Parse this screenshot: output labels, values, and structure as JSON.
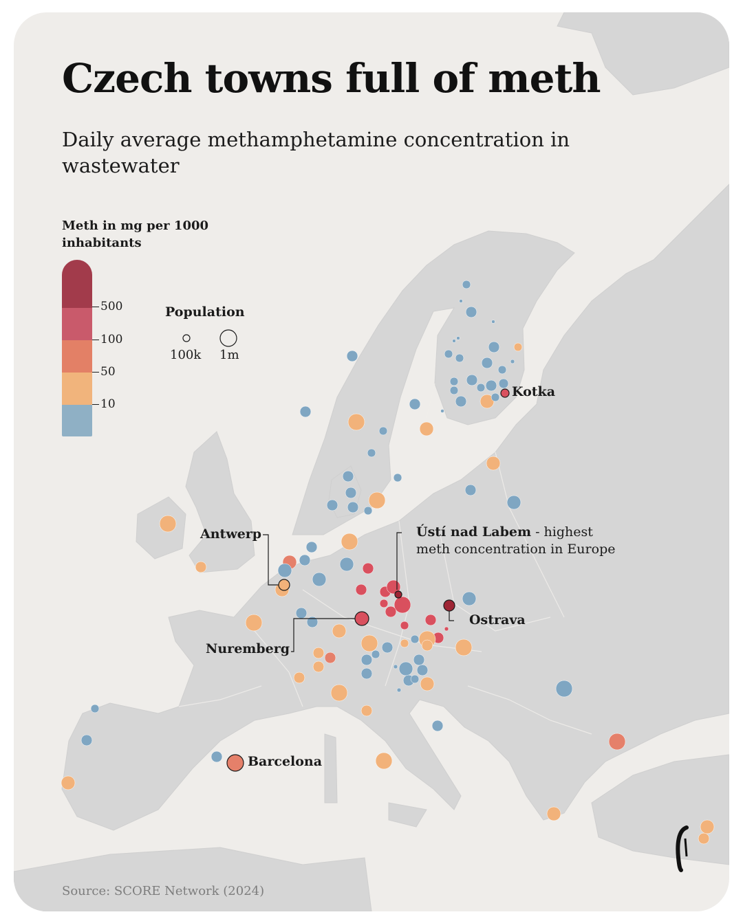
{
  "title": "Czech towns full of meth",
  "subtitle": "Daily average methamphetamine concentration in wastewater",
  "legend": {
    "title": "Meth in mg per 1000 inhabitants",
    "ticks": [
      "500",
      "100",
      "50",
      "10"
    ],
    "colors": [
      "#a23b4b",
      "#c95a6b",
      "#e38066",
      "#f1b47c",
      "#8fb0c5"
    ]
  },
  "population_legend": {
    "title": "Population",
    "small_label": "100k",
    "large_label": "1m"
  },
  "labels": {
    "kotka": "Kotka",
    "antwerp": "Antwerp",
    "usti": "Ústí nad Labem",
    "usti_note_rest": " - highest",
    "usti_note_line2": "meth concentration in Europe",
    "ostrava": "Ostrava",
    "nuremberg": "Nuremberg",
    "barcelona": "Barcelona"
  },
  "source": "Source: SCORE Network (2024)",
  "colors": {
    "land": "#d6d6d6",
    "sea": "#efedea",
    "blue": "#7fa6c2",
    "yellow": "#f2b27a",
    "orange": "#e5806a",
    "red": "#d9505e",
    "darkred": "#9e2534"
  }
}
